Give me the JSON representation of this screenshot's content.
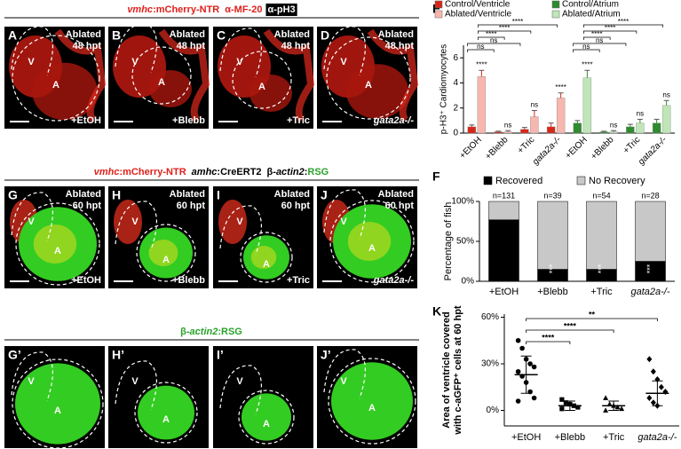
{
  "figure": {
    "rows": [
      {
        "title_parts": [
          {
            "text": "vmhc",
            "color": "#e0201a",
            "italic": true
          },
          {
            "text": ":mCherry-NTR",
            "color": "#e0201a"
          },
          {
            "text": "α-MF-20",
            "color": "#e0201a"
          },
          {
            "text": "α-pH3",
            "color": "#ffffff",
            "background": "#000000"
          }
        ],
        "panels": [
          {
            "letter": "A",
            "stage": "Ablated",
            "time": "48 hpt",
            "labels": [
              "V",
              "A"
            ],
            "treatment": "+EtOH"
          },
          {
            "letter": "B",
            "stage": "Ablated",
            "time": "48 hpt",
            "labels": [
              "V",
              "A"
            ],
            "treatment": "+Blebb"
          },
          {
            "letter": "C",
            "stage": "Ablated",
            "time": "48 hpt",
            "labels": [
              "V",
              "A"
            ],
            "treatment": "+Tric"
          },
          {
            "letter": "D",
            "stage": "Ablated",
            "time": "48 hpt",
            "labels": [
              "V",
              "A"
            ],
            "treatment": "gata2a-/-"
          }
        ]
      },
      {
        "title_parts": [
          {
            "text": "vmhc",
            "color": "#e0201a",
            "italic": true
          },
          {
            "text": ":mCherry-NTR",
            "color": "#e0201a"
          },
          {
            "text": "amhc",
            "color": "#000000",
            "italic": true
          },
          {
            "text": ":CreERT2",
            "color": "#000000"
          },
          {
            "text": "β-",
            "color": "#000000"
          },
          {
            "text": "actin2",
            "color": "#000000",
            "italic": true
          },
          {
            "text": ":",
            "color": "#000000"
          },
          {
            "text": "RSG",
            "color": "#2aa12a"
          }
        ],
        "panels": [
          {
            "letter": "G",
            "stage": "Ablated",
            "time": "60 hpt",
            "labels": [
              "V",
              "A"
            ],
            "treatment": "+EtOH"
          },
          {
            "letter": "H",
            "stage": "Ablated",
            "time": "60 hpt",
            "labels": [
              "V",
              "A"
            ],
            "treatment": "+Blebb"
          },
          {
            "letter": "I",
            "stage": "Ablated",
            "time": "60 hpt",
            "labels": [
              "V",
              "A"
            ],
            "treatment": "+Tric"
          },
          {
            "letter": "J",
            "stage": "Ablated",
            "time": "60 hpt",
            "labels": [
              "V",
              "A"
            ],
            "treatment": "gata2a-/-"
          }
        ]
      },
      {
        "title_parts": [
          {
            "text": "β-",
            "color": "#2aa12a"
          },
          {
            "text": "actin2",
            "color": "#2aa12a",
            "italic": true
          },
          {
            "text": ":RSG",
            "color": "#2aa12a"
          }
        ],
        "panels": [
          {
            "letter": "G’",
            "labels": [
              "V",
              "A"
            ]
          },
          {
            "letter": "H’",
            "labels": [
              "V",
              "A"
            ]
          },
          {
            "letter": "I’",
            "labels": [
              "V",
              "A"
            ]
          },
          {
            "letter": "J’",
            "labels": [
              "V",
              "A"
            ]
          }
        ]
      }
    ]
  },
  "chart_data": [
    {
      "type": "bar",
      "letter": "E",
      "y_label": "p-H3⁺ Cardiomyocytes",
      "categories": [
        "+EtOH",
        "+Blebb",
        "+Tric",
        "gata2a-/-",
        "+EtOH",
        "+Blebb",
        "+Tric",
        "gata2a-/-"
      ],
      "series": [
        {
          "name": "Control/Ventricle",
          "color": "#d62718",
          "values": [
            0.5,
            0.1,
            0.3,
            0.5,
            null,
            null,
            null,
            null
          ],
          "errors": [
            0.15,
            0.05,
            0.15,
            0.3,
            null,
            null,
            null,
            null
          ]
        },
        {
          "name": "Ablated/Ventricle",
          "color": "#f7b7ae",
          "values": [
            4.5,
            0.1,
            1.3,
            2.8,
            null,
            null,
            null,
            null
          ],
          "errors": [
            0.5,
            0.1,
            0.5,
            0.4,
            null,
            null,
            null,
            null
          ]
        },
        {
          "name": "Control/Atrium",
          "color": "#2e8b2e",
          "values": [
            null,
            null,
            null,
            null,
            0.8,
            0.1,
            0.5,
            0.8
          ],
          "errors": [
            null,
            null,
            null,
            null,
            0.2,
            0.05,
            0.2,
            0.3
          ]
        },
        {
          "name": "Ablated/Atrium",
          "color": "#bfe6b8",
          "values": [
            null,
            null,
            null,
            null,
            4.4,
            0.1,
            0.8,
            2.2
          ],
          "errors": [
            null,
            null,
            null,
            null,
            0.6,
            0.1,
            0.3,
            0.4
          ]
        }
      ],
      "bar_annotations": [
        "****",
        "ns",
        "ns",
        "****",
        "****",
        "ns",
        "ns",
        "ns"
      ],
      "bracket_labels": [
        "****",
        "****",
        "****",
        "ns",
        "ns",
        "****",
        "****",
        "****",
        "ns",
        "ns"
      ],
      "ylim": [
        0,
        7
      ],
      "yticks": [
        0,
        2,
        4,
        6
      ]
    },
    {
      "type": "stacked_bar",
      "letter": "F",
      "y_label": "Percentage of fish",
      "categories": [
        "+EtOH",
        "+Blebb",
        "+Tric",
        "gata2a-/-"
      ],
      "series": [
        {
          "name": "Recovered",
          "color": "#000000",
          "values": [
            77,
            15,
            15,
            25
          ]
        },
        {
          "name": "No Recovery",
          "color": "#c8c8c8",
          "values": [
            23,
            85,
            85,
            75
          ]
        }
      ],
      "n_labels": [
        "n=131",
        "n=39",
        "n=54",
        "n=28"
      ],
      "inner_labels": [
        null,
        "***",
        "***",
        "***"
      ],
      "ylim": [
        0,
        100
      ],
      "yticks": [
        {
          "value": 0,
          "label": "0%"
        },
        {
          "value": 50,
          "label": "50%"
        },
        {
          "value": 100,
          "label": "100%"
        }
      ]
    },
    {
      "type": "scatter",
      "letter": "K",
      "y_label": [
        "Area of ventricle covered",
        "with c-aGFP⁺ cells at 60 hpt"
      ],
      "categories": [
        "+EtOH",
        "+Blebb",
        "+Tric",
        "gata2a-/-"
      ],
      "points": [
        [
          45,
          40,
          33,
          30,
          28,
          25,
          22,
          18,
          12,
          8,
          6
        ],
        [
          7,
          5,
          4,
          3,
          2,
          1
        ],
        [
          8,
          4,
          3,
          2,
          1,
          0
        ],
        [
          33,
          25,
          20,
          15,
          12,
          8,
          5,
          3
        ]
      ],
      "markers": [
        "circle",
        "square",
        "triangle",
        "diamond"
      ],
      "color": "#000000",
      "means": [
        23,
        3,
        3,
        11
      ],
      "sds": [
        12,
        3,
        3,
        8
      ],
      "significance": [
        "**",
        "****",
        "****"
      ],
      "ylim": [
        -10,
        62
      ],
      "yticks": [
        {
          "value": 0,
          "label": "0%"
        },
        {
          "value": 30,
          "label": "30%"
        },
        {
          "value": 60,
          "label": "60%"
        }
      ]
    }
  ]
}
